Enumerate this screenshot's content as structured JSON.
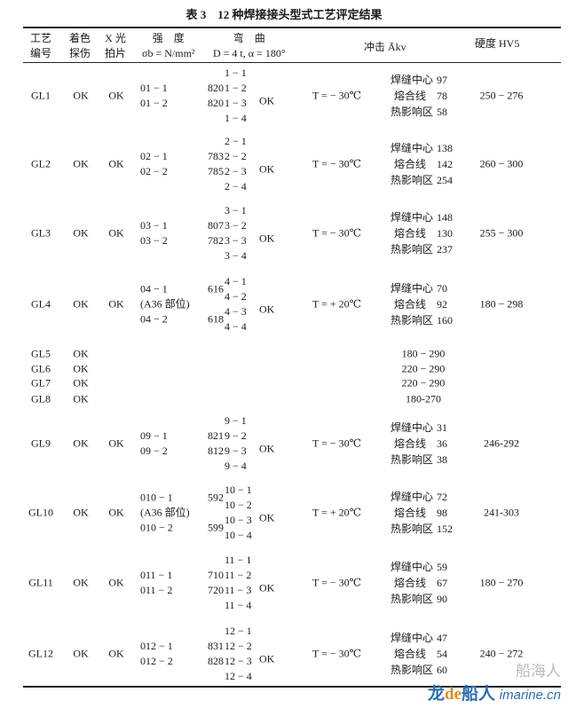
{
  "title": "表 3　12 种焊接接头型式工艺评定结果",
  "headers": {
    "id": [
      "工艺",
      "编号"
    ],
    "dye": [
      "着色",
      "探伤"
    ],
    "xray": [
      "X 光",
      "拍片"
    ],
    "strength": [
      "强　度",
      "σb = N/mm²"
    ],
    "bend": [
      "弯　曲",
      "D = 4 t, α = 180°"
    ],
    "impact": "冲击 Ākv",
    "hardness": "硬度 HV5"
  },
  "rows": [
    {
      "id": "GL1",
      "dye": "OK",
      "xray": "OK",
      "strength": [
        [
          "01 − 1",
          "820"
        ],
        [
          "01 − 2",
          "820"
        ]
      ],
      "bend": [
        "1 − 1",
        "1 − 2",
        "1 − 3",
        "1 − 4"
      ],
      "bend_result": "OK",
      "impact_temp": "T = − 30℃",
      "impact": [
        {
          "label": "焊缝中心",
          "value": "97"
        },
        {
          "label": "熔合线",
          "value": "78"
        },
        {
          "label": "热影响区",
          "value": "58"
        }
      ],
      "hardness": "250 − 276"
    },
    {
      "id": "GL2",
      "dye": "OK",
      "xray": "OK",
      "strength": [
        [
          "02 − 1",
          "783"
        ],
        [
          "02 − 2",
          "785"
        ]
      ],
      "bend": [
        "2 − 1",
        "2 − 2",
        "2 − 3",
        "2 − 4"
      ],
      "bend_result": "OK",
      "impact_temp": "T = − 30℃",
      "impact": [
        {
          "label": "焊缝中心",
          "value": "138"
        },
        {
          "label": "熔合线",
          "value": "142"
        },
        {
          "label": "热影响区",
          "value": "254"
        }
      ],
      "hardness": "260 − 300"
    },
    {
      "id": "GL3",
      "dye": "OK",
      "xray": "OK",
      "strength": [
        [
          "03 − 1",
          "807"
        ],
        [
          "03 − 2",
          "782"
        ]
      ],
      "bend": [
        "3 − 1",
        "3 − 2",
        "3 − 3",
        "3 − 4"
      ],
      "bend_result": "OK",
      "impact_temp": "T = − 30℃",
      "impact": [
        {
          "label": "焊缝中心",
          "value": "148"
        },
        {
          "label": "熔合线",
          "value": "130"
        },
        {
          "label": "热影响区",
          "value": "237"
        }
      ],
      "hardness": "255 − 300"
    },
    {
      "id": "GL4",
      "dye": "OK",
      "xray": "OK",
      "strength": [
        [
          "04 − 1",
          "616"
        ],
        [
          "(A36 部位)",
          ""
        ],
        [
          "04 − 2",
          "618"
        ]
      ],
      "bend": [
        "4 − 1",
        "4 − 2",
        "4 − 3",
        "4 − 4"
      ],
      "bend_result": "OK",
      "impact_temp": "T = + 20℃",
      "impact": [
        {
          "label": "焊缝中心",
          "value": "70"
        },
        {
          "label": "熔合线",
          "value": "92"
        },
        {
          "label": "热影响区",
          "value": "160"
        }
      ],
      "hardness": "180 − 298"
    },
    {
      "id": "GL5",
      "dye": "OK",
      "xray": "",
      "strength": [],
      "bend": [],
      "bend_result": "",
      "impact_temp": "",
      "impact": [],
      "hardness_center": "180 − 290"
    },
    {
      "id": "GL6",
      "dye": "OK",
      "xray": "",
      "strength": [],
      "bend": [],
      "bend_result": "",
      "impact_temp": "",
      "impact": [],
      "hardness_center": "220 − 290"
    },
    {
      "id": "GL7",
      "dye": "OK",
      "xray": "",
      "strength": [],
      "bend": [],
      "bend_result": "",
      "impact_temp": "",
      "impact": [],
      "hardness_center": "220 − 290"
    },
    {
      "id": "GL8",
      "dye": "OK",
      "xray": "",
      "strength": [],
      "bend": [],
      "bend_result": "",
      "impact_temp": "",
      "impact": [],
      "hardness_center": "180-270"
    },
    {
      "id": "GL9",
      "dye": "OK",
      "xray": "OK",
      "strength": [
        [
          "09 − 1",
          "821"
        ],
        [
          "09 − 2",
          "812"
        ]
      ],
      "bend": [
        "9 − 1",
        "9 − 2",
        "9 − 3",
        "9 − 4"
      ],
      "bend_result": "OK",
      "impact_temp": "T = − 30℃",
      "impact": [
        {
          "label": "焊缝中心",
          "value": "31"
        },
        {
          "label": "熔合线",
          "value": "36"
        },
        {
          "label": "热影响区",
          "value": "38"
        }
      ],
      "hardness": "246-292"
    },
    {
      "id": "GL10",
      "dye": "OK",
      "xray": "OK",
      "strength": [
        [
          "010 − 1",
          "592"
        ],
        [
          "(A36 部位)",
          ""
        ],
        [
          "010 − 2",
          "599"
        ]
      ],
      "bend": [
        "10 − 1",
        "10 − 2",
        "10 − 3",
        "10 − 4"
      ],
      "bend_result": "OK",
      "impact_temp": "T = + 20℃",
      "impact": [
        {
          "label": "焊缝中心",
          "value": "72"
        },
        {
          "label": "熔合线",
          "value": "98"
        },
        {
          "label": "热影响区",
          "value": "152"
        }
      ],
      "hardness": "241-303"
    },
    {
      "id": "GL11",
      "dye": "OK",
      "xray": "OK",
      "strength": [
        [
          "011 − 1",
          "710"
        ],
        [
          "011 − 2",
          "720"
        ]
      ],
      "bend": [
        "11 − 1",
        "11 − 2",
        "11 − 3",
        "11 − 4"
      ],
      "bend_result": "OK",
      "impact_temp": "T = − 30℃",
      "impact": [
        {
          "label": "焊缝中心",
          "value": "59"
        },
        {
          "label": "熔合线",
          "value": "67"
        },
        {
          "label": "热影响区",
          "value": "90"
        }
      ],
      "hardness": "180 − 270"
    },
    {
      "id": "GL12",
      "dye": "OK",
      "xray": "OK",
      "strength": [
        [
          "012 − 1",
          "831"
        ],
        [
          "012 − 2",
          "828"
        ]
      ],
      "bend": [
        "12 − 1",
        "12 − 2",
        "12 − 3",
        "12 − 4"
      ],
      "bend_result": "OK",
      "impact_temp": "T = − 30℃",
      "impact": [
        {
          "label": "焊缝中心",
          "value": "47"
        },
        {
          "label": "熔合线",
          "value": "54"
        },
        {
          "label": "热影响区",
          "value": "60"
        }
      ],
      "hardness": "240 − 272"
    }
  ],
  "watermark": {
    "line1": "船海人",
    "brand_a": "龙",
    "brand_de": "de",
    "brand_b": "船人",
    "site": "imarine.cn"
  }
}
